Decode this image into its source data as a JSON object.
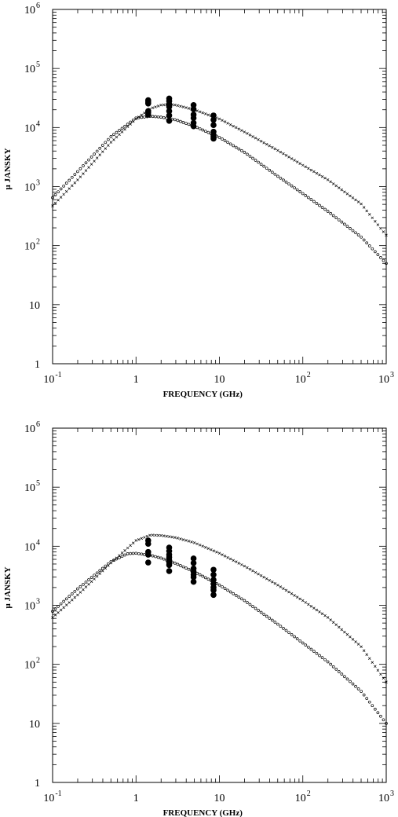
{
  "chart_data": [
    {
      "type": "scatter",
      "title": "",
      "xlabel": "FREQUENCY (GHz)",
      "ylabel": "μ JANSKY",
      "xscale": "log",
      "yscale": "log",
      "xlim": [
        0.1,
        1000
      ],
      "ylim": [
        1,
        1000000
      ],
      "x_tick_labels": [
        {
          "base": "10",
          "exp": "-1"
        },
        {
          "base": "1",
          "exp": ""
        },
        {
          "base": "10",
          "exp": ""
        },
        {
          "base": "10",
          "exp": "2"
        },
        {
          "base": "10",
          "exp": "3"
        }
      ],
      "y_tick_labels": [
        {
          "base": "1",
          "exp": ""
        },
        {
          "base": "10",
          "exp": ""
        },
        {
          "base": "10",
          "exp": "2"
        },
        {
          "base": "10",
          "exp": "3"
        },
        {
          "base": "10",
          "exp": "4"
        },
        {
          "base": "10",
          "exp": "5"
        },
        {
          "base": "10",
          "exp": "6"
        }
      ],
      "grid": false,
      "legend": "none",
      "series": [
        {
          "marker": "open-circle",
          "style": "model curve",
          "x": [
            0.1,
            0.2,
            0.5,
            1.0,
            1.5,
            2.0,
            3.0,
            5.0,
            10,
            20,
            50,
            100,
            200,
            500,
            1000
          ],
          "y": [
            650,
            1800,
            7000,
            14500,
            15500,
            15000,
            13500,
            10500,
            6800,
            3800,
            1500,
            760,
            380,
            140,
            50
          ]
        },
        {
          "marker": "x-cross",
          "style": "model curve",
          "x": [
            0.1,
            0.2,
            0.5,
            1.0,
            1.5,
            2.0,
            2.5,
            3.0,
            5.0,
            10,
            20,
            50,
            100,
            200,
            500,
            1000
          ],
          "y": [
            470,
            1300,
            5600,
            14000,
            21000,
            24000,
            24500,
            24000,
            20000,
            14000,
            8400,
            4100,
            2300,
            1300,
            510,
            150
          ]
        },
        {
          "marker": "filled-circle",
          "style": "observations",
          "x": [
            1.4,
            1.4,
            1.4,
            1.4,
            1.4,
            1.4,
            2.5,
            2.5,
            2.5,
            2.5,
            2.5,
            2.5,
            2.5,
            4.9,
            4.9,
            4.9,
            4.9,
            4.9,
            4.9,
            8.5,
            8.5,
            8.5,
            8.5,
            8.5,
            8.5,
            8.5
          ],
          "y": [
            29000,
            27000,
            25500,
            19000,
            18000,
            16500,
            31000,
            28000,
            25000,
            22500,
            19000,
            16000,
            13000,
            24000,
            20500,
            16500,
            14500,
            12000,
            10500,
            16000,
            13500,
            11000,
            8500,
            7500,
            7000,
            6500
          ]
        }
      ]
    },
    {
      "type": "scatter",
      "title": "",
      "xlabel": "FREQUENCY (GHz)",
      "ylabel": "μ JANSKY",
      "xscale": "log",
      "yscale": "log",
      "xlim": [
        0.1,
        1000
      ],
      "ylim": [
        1,
        1000000
      ],
      "x_tick_labels": [
        {
          "base": "10",
          "exp": "-1"
        },
        {
          "base": "1",
          "exp": ""
        },
        {
          "base": "10",
          "exp": ""
        },
        {
          "base": "10",
          "exp": "2"
        },
        {
          "base": "10",
          "exp": "3"
        }
      ],
      "y_tick_labels": [
        {
          "base": "1",
          "exp": ""
        },
        {
          "base": "10",
          "exp": ""
        },
        {
          "base": "10",
          "exp": "2"
        },
        {
          "base": "10",
          "exp": "3"
        },
        {
          "base": "10",
          "exp": "4"
        },
        {
          "base": "10",
          "exp": "5"
        },
        {
          "base": "10",
          "exp": "6"
        }
      ],
      "grid": false,
      "legend": "none",
      "series": [
        {
          "marker": "open-circle",
          "style": "model curve",
          "x": [
            0.1,
            0.2,
            0.5,
            0.8,
            1.0,
            1.5,
            2.0,
            3.0,
            5.0,
            10,
            20,
            50,
            100,
            200,
            500,
            1000
          ],
          "y": [
            790,
            1900,
            5500,
            7500,
            7600,
            7000,
            6300,
            5100,
            3700,
            2200,
            1200,
            480,
            230,
            110,
            35,
            10
          ]
        },
        {
          "marker": "x-cross",
          "style": "model curve",
          "x": [
            0.1,
            0.2,
            0.5,
            1.0,
            1.5,
            2.0,
            3.0,
            5.0,
            10,
            20,
            50,
            100,
            200,
            500,
            1000
          ],
          "y": [
            620,
            1500,
            5200,
            12500,
            15500,
            15200,
            14000,
            11500,
            7600,
            4600,
            2200,
            1200,
            620,
            200,
            50
          ]
        },
        {
          "marker": "filled-circle",
          "style": "observations",
          "x": [
            1.4,
            1.4,
            1.4,
            1.4,
            1.4,
            2.5,
            2.5,
            2.5,
            2.5,
            2.5,
            2.5,
            2.5,
            2.5,
            4.9,
            4.9,
            4.9,
            4.9,
            4.9,
            4.9,
            4.9,
            8.5,
            8.5,
            8.5,
            8.5,
            8.5,
            8.5,
            8.5
          ],
          "y": [
            12500,
            11000,
            8000,
            7200,
            5300,
            9500,
            8300,
            7200,
            6500,
            5800,
            5300,
            4800,
            3800,
            6200,
            5200,
            4200,
            3700,
            3300,
            3000,
            2500,
            4000,
            3300,
            2700,
            2300,
            2000,
            1800,
            1500
          ]
        }
      ]
    }
  ]
}
